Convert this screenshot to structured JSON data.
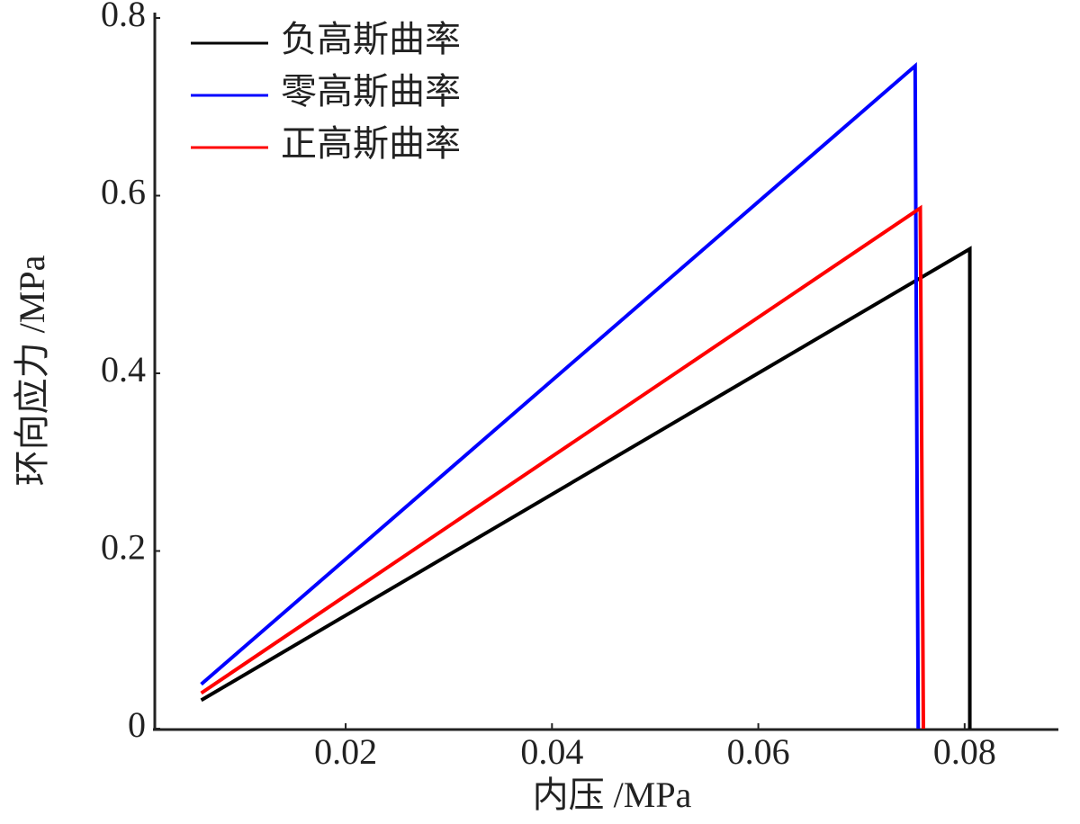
{
  "chart_data": {
    "type": "line",
    "x_label": "内压 /MPa",
    "y_label": "环向应力 /MPa",
    "xlim": [
      0.0015,
      0.089
    ],
    "xticks": [
      0.02,
      0.04,
      0.06,
      0.08
    ],
    "ylim": [
      0,
      0.8
    ],
    "yticks": [
      0,
      0.2,
      0.4,
      0.6,
      0.8
    ],
    "legend": "upper-left",
    "series": [
      {
        "name": "负高斯曲率",
        "color": "#000000",
        "x": [
          0.006,
          0.0805,
          0.0805
        ],
        "values": [
          0.032,
          0.54,
          0
        ]
      },
      {
        "name": "零高斯曲率",
        "color": "#0000ff",
        "x": [
          0.006,
          0.0752,
          0.0755
        ],
        "values": [
          0.05,
          0.746,
          0
        ]
      },
      {
        "name": "正高斯曲率",
        "color": "#ff0000",
        "x": [
          0.006,
          0.0757,
          0.076
        ],
        "values": [
          0.04,
          0.586,
          0
        ]
      }
    ]
  }
}
